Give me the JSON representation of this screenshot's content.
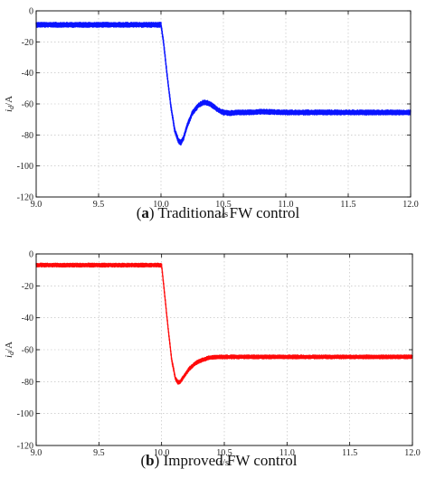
{
  "chart_data": [
    {
      "type": "line",
      "caption_letter": "a",
      "caption_text": "Traditional FW control",
      "xlabel": "t/s",
      "ylabel_main": "i",
      "ylabel_sub": "d",
      "ylabel_unit": "/A",
      "xlim": [
        9.0,
        12.0
      ],
      "ylim": [
        -120,
        0
      ],
      "xticks": [
        "9.0",
        "9.5",
        "10.0",
        "10.5",
        "11.0",
        "11.5",
        "12.0"
      ],
      "yticks": [
        "0",
        "-20",
        "-40",
        "-60",
        "-80",
        "-100",
        "-120"
      ],
      "grid": true,
      "color": "#0a14ff",
      "ripple": 1.6,
      "series": [
        {
          "x": [
            9.0,
            10.0,
            10.02,
            10.05,
            10.08,
            10.11,
            10.14,
            10.16,
            10.18,
            10.21,
            10.25,
            10.3,
            10.34,
            10.38,
            10.42,
            10.46,
            10.5,
            10.55,
            10.6,
            10.7,
            10.8,
            11.0,
            11.5,
            12.0
          ],
          "y": [
            -9,
            -9,
            -20,
            -42,
            -62,
            -77,
            -84,
            -85,
            -82,
            -74,
            -66,
            -61,
            -59,
            -59.5,
            -61.5,
            -64,
            -65.5,
            -66,
            -65.5,
            -65.5,
            -65,
            -65.5,
            -65.5,
            -65.5
          ]
        }
      ]
    },
    {
      "type": "line",
      "caption_letter": "b",
      "caption_text": "Improved FW control",
      "xlabel": "t/s",
      "ylabel_main": "i",
      "ylabel_sub": "d",
      "ylabel_unit": "/A",
      "xlim": [
        9.0,
        12.0
      ],
      "ylim": [
        -120,
        0
      ],
      "xticks": [
        "9.0",
        "9.5",
        "10.0",
        "10.5",
        "11.0",
        "11.5",
        "12.0"
      ],
      "yticks": [
        "0",
        "-20",
        "-40",
        "-60",
        "-80",
        "-100",
        "-120"
      ],
      "grid": true,
      "color": "#ff0a0a",
      "ripple": 1.2,
      "series": [
        {
          "x": [
            9.0,
            10.0,
            10.02,
            10.05,
            10.08,
            10.11,
            10.13,
            10.15,
            10.18,
            10.22,
            10.27,
            10.32,
            10.38,
            10.45,
            10.55,
            10.7,
            11.0,
            11.5,
            12.0
          ],
          "y": [
            -7,
            -7,
            -22,
            -45,
            -66,
            -78,
            -80.5,
            -80,
            -76.5,
            -72,
            -68.5,
            -66.5,
            -65,
            -64.5,
            -64.5,
            -64.5,
            -64.5,
            -64.5,
            -64.5
          ]
        }
      ]
    }
  ]
}
